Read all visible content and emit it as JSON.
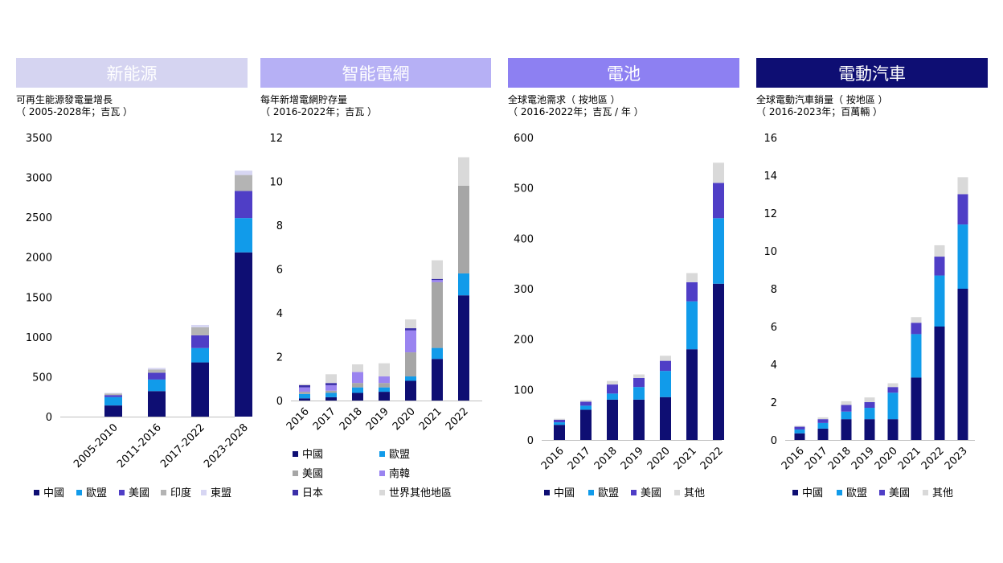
{
  "charts": [
    {
      "banner": "新能源",
      "banner_bg": "#d5d4f1",
      "banner_fg": "#ffffff",
      "subtitle_1": "可再生能源發電量增長",
      "subtitle_2": "（ 2005-2028年；吉瓦 ）",
      "chart_data": {
        "type": "bar",
        "stacked": true,
        "categories": [
          "2005-2010",
          "2011-2016",
          "2017-2022",
          "2023-2028"
        ],
        "ylim": [
          0,
          3500
        ],
        "yticks": [
          0,
          500,
          1000,
          1500,
          2000,
          2500,
          3000,
          3500
        ],
        "series": [
          {
            "name": "中國",
            "color": "#0e0e73",
            "values": [
              140,
              320,
              680,
              2060
            ]
          },
          {
            "name": "歐盟",
            "color": "#119bea",
            "values": [
              105,
              145,
              180,
              430
            ]
          },
          {
            "name": "美國",
            "color": "#4f3ec6",
            "values": [
              25,
              85,
              160,
              340
            ]
          },
          {
            "name": "印度",
            "color": "#b4b4b4",
            "values": [
              20,
              40,
              100,
              200
            ]
          },
          {
            "name": "東盟",
            "color": "#d7d6f3",
            "values": [
              8,
              20,
              30,
              55
            ]
          }
        ],
        "legend_position": "bottom"
      }
    },
    {
      "banner": "智能電網",
      "banner_bg": "#b6b0f5",
      "banner_fg": "#ffffff",
      "subtitle_1": "每年新增電網貯存量",
      "subtitle_2": "（ 2016-2022年；吉瓦 ）",
      "chart_data": {
        "type": "bar",
        "stacked": true,
        "categories": [
          "2016",
          "2017",
          "2018",
          "2019",
          "2020",
          "2021",
          "2022"
        ],
        "ylim": [
          0,
          12
        ],
        "yticks": [
          0,
          2,
          4,
          6,
          8,
          10,
          12
        ],
        "series": [
          {
            "name": "中國",
            "color": "#0e0e73",
            "values": [
              0.1,
              0.15,
              0.35,
              0.4,
              0.9,
              1.9,
              4.8
            ]
          },
          {
            "name": "歐盟",
            "color": "#119bea",
            "values": [
              0.2,
              0.2,
              0.25,
              0.2,
              0.2,
              0.5,
              1.0
            ]
          },
          {
            "name": "美國",
            "color": "#a6a6a6",
            "values": [
              0.1,
              0.1,
              0.2,
              0.2,
              1.1,
              3.0,
              4.0
            ]
          },
          {
            "name": "南韓",
            "color": "#9a84f0",
            "values": [
              0.2,
              0.25,
              0.5,
              0.3,
              1.0,
              0.1,
              0.0
            ]
          },
          {
            "name": "日本",
            "color": "#3b2fa8",
            "values": [
              0.1,
              0.1,
              0.0,
              0.0,
              0.1,
              0.05,
              0.0
            ]
          },
          {
            "name": "世界其他地區",
            "color": "#d9d9d9",
            "values": [
              0.05,
              0.4,
              0.35,
              0.6,
              0.4,
              0.85,
              1.3
            ]
          }
        ],
        "legend_position": "bottom"
      }
    },
    {
      "banner": "電池",
      "banner_bg": "#8d80f2",
      "banner_fg": "#ffffff",
      "subtitle_1": "全球電池需求（ 按地區 ）",
      "subtitle_2": "（ 2016-2022年；吉瓦 / 年 ）",
      "chart_data": {
        "type": "bar",
        "stacked": true,
        "categories": [
          "2016",
          "2017",
          "2018",
          "2019",
          "2020",
          "2021",
          "2022"
        ],
        "ylim": [
          0,
          600
        ],
        "yticks": [
          0,
          100,
          200,
          300,
          400,
          500,
          600
        ],
        "series": [
          {
            "name": "中國",
            "color": "#0e0e73",
            "values": [
              30,
              60,
              80,
              80,
              85,
              180,
              310
            ]
          },
          {
            "name": "歐盟",
            "color": "#119bea",
            "values": [
              5,
              8,
              12,
              25,
              52,
              95,
              130
            ]
          },
          {
            "name": "美國",
            "color": "#4f3ec6",
            "values": [
              5,
              8,
              18,
              18,
              20,
              38,
              70
            ]
          },
          {
            "name": "其他",
            "color": "#d9d9d9",
            "values": [
              2,
              3,
              7,
              7,
              10,
              18,
              40
            ]
          }
        ],
        "legend_position": "bottom"
      }
    },
    {
      "banner": "電動汽車",
      "banner_bg": "#0e0e73",
      "banner_fg": "#ffffff",
      "subtitle_1": "全球電動汽車銷量（ 按地區 ）",
      "subtitle_2": "（ 2016-2023年；百萬輛 ）",
      "chart_data": {
        "type": "bar",
        "stacked": true,
        "categories": [
          "2016",
          "2017",
          "2018",
          "2019",
          "2020",
          "2021",
          "2022",
          "2023"
        ],
        "ylim": [
          0,
          16
        ],
        "yticks": [
          0,
          2,
          4,
          6,
          8,
          10,
          12,
          14,
          16
        ],
        "series": [
          {
            "name": "中國",
            "color": "#0e0e73",
            "values": [
              0.35,
              0.6,
              1.1,
              1.1,
              1.1,
              3.3,
              6.0,
              8.0
            ]
          },
          {
            "name": "歐盟",
            "color": "#119bea",
            "values": [
              0.2,
              0.3,
              0.4,
              0.6,
              1.4,
              2.3,
              2.7,
              3.4
            ]
          },
          {
            "name": "美國",
            "color": "#4f3ec6",
            "values": [
              0.15,
              0.2,
              0.35,
              0.3,
              0.3,
              0.6,
              1.0,
              1.6
            ]
          },
          {
            "name": "其他",
            "color": "#d9d9d9",
            "values": [
              0.05,
              0.1,
              0.2,
              0.25,
              0.2,
              0.3,
              0.6,
              0.9
            ]
          }
        ],
        "legend_position": "bottom"
      }
    }
  ]
}
